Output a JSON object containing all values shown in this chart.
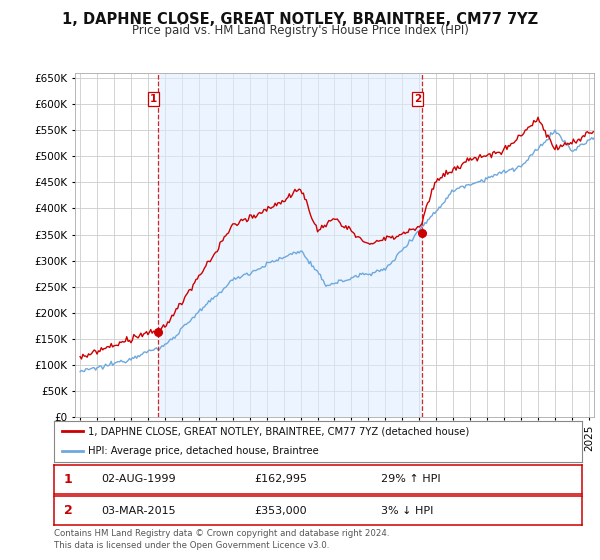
{
  "title": "1, DAPHNE CLOSE, GREAT NOTLEY, BRAINTREE, CM77 7YZ",
  "subtitle": "Price paid vs. HM Land Registry's House Price Index (HPI)",
  "legend_line1": "1, DAPHNE CLOSE, GREAT NOTLEY, BRAINTREE, CM77 7YZ (detached house)",
  "legend_line2": "HPI: Average price, detached house, Braintree",
  "transaction1_date": "02-AUG-1999",
  "transaction1_price": 162995,
  "transaction1_hpi": "29% ↑ HPI",
  "transaction2_date": "03-MAR-2015",
  "transaction2_price": 353000,
  "transaction2_hpi": "3% ↓ HPI",
  "vline1_x": 1999.58,
  "vline2_x": 2015.17,
  "point1_x": 1999.58,
  "point1_y": 162995,
  "point2_x": 2015.17,
  "point2_y": 353000,
  "hpi_color": "#6fa8dc",
  "price_color": "#cc0000",
  "vline_color": "#cc0000",
  "shade_color": "#ddeeff",
  "background_color": "#ffffff",
  "grid_color": "#cccccc",
  "ylim": [
    0,
    660000
  ],
  "yticks": [
    0,
    50000,
    100000,
    150000,
    200000,
    250000,
    300000,
    350000,
    400000,
    450000,
    500000,
    550000,
    600000,
    650000
  ],
  "xlim_left": 1994.7,
  "xlim_right": 2025.3,
  "title_fontsize": 10.5,
  "subtitle_fontsize": 8.5,
  "tick_fontsize": 7.5
}
